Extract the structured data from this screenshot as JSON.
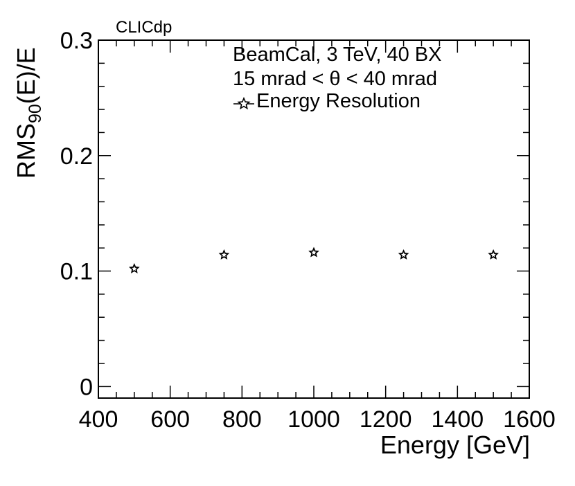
{
  "chart_data": {
    "type": "scatter",
    "tag": "CLICdp",
    "legend": {
      "line1": "BeamCal, 3 TeV, 40 BX",
      "line2": "15 mrad < θ < 40 mrad",
      "entry": "Energy Resolution",
      "placement": "top-right"
    },
    "xlabel": "Energy [GeV]",
    "ylabel": {
      "base": "RMS",
      "sub": "90",
      "tail": "(E)/E"
    },
    "xlim": [
      400,
      1600
    ],
    "ylim": [
      -0.01,
      0.3
    ],
    "xticks": [
      "400",
      "600",
      "800",
      "1000",
      "1200",
      "1400",
      "1600"
    ],
    "yticks": [
      "0",
      "0.1",
      "0.2",
      "0.3"
    ],
    "series": [
      {
        "name": "Energy Resolution",
        "marker": "star",
        "points": [
          {
            "x": 500,
            "y": 0.102
          },
          {
            "x": 750,
            "y": 0.114
          },
          {
            "x": 1000,
            "y": 0.116
          },
          {
            "x": 1250,
            "y": 0.114
          },
          {
            "x": 1500,
            "y": 0.114
          }
        ]
      }
    ]
  }
}
